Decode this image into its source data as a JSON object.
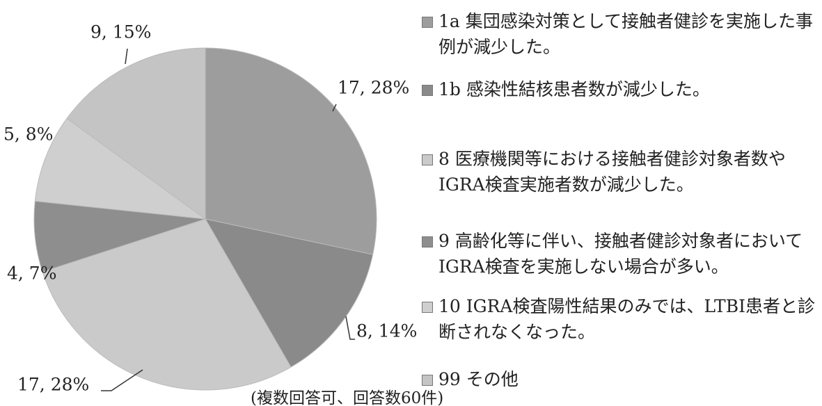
{
  "chart_data": {
    "type": "pie",
    "categories": [
      "1a 集団感染対策として接触者健診を実施した事例が減少した。",
      "1b 感染性結核患者数が減少した。",
      "8 医療機関等における接触者健診対象者数やIGRA検査実施者数が減少した。",
      "9 高齢化等に伴い、接触者健診対象者においてIGRA検査を実施しない場合が多い。",
      "10 IGRA検査陽性結果のみでは、LTBI患者と診断されなくなった。",
      "99 その他"
    ],
    "values": [
      17,
      8,
      17,
      4,
      5,
      9
    ],
    "value_labels": [
      "17, 28%",
      "8, 14%",
      "17, 28%",
      "4, 7%",
      "5, 8%",
      "9, 15%"
    ],
    "colors": [
      "#9d9d9d",
      "#8a8a8a",
      "#cacaca",
      "#8e8e8e",
      "#cfcfcf",
      "#c4c4c4"
    ],
    "note": "(複数回答可、回答数60件)"
  }
}
